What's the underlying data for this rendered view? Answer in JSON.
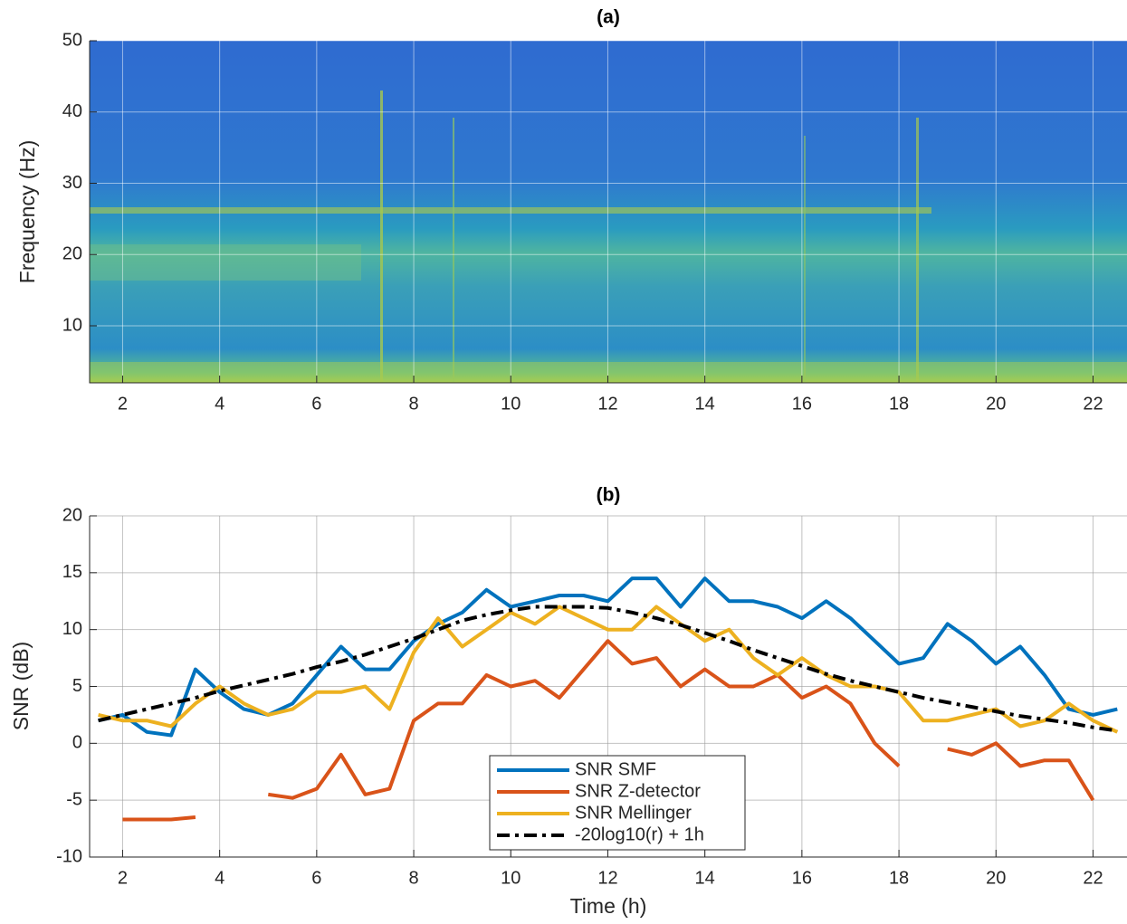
{
  "chart_data": [
    {
      "type": "spectrogram",
      "title": "(a)",
      "ylabel": "Frequency (Hz)",
      "xlim": [
        1.32,
        22.7
      ],
      "xticks": [
        2,
        4,
        6,
        8,
        10,
        12,
        14,
        16,
        18,
        20,
        22
      ],
      "ylim": [
        2,
        50
      ],
      "yticks": [
        10,
        20,
        30,
        40,
        50
      ],
      "grid": true
    },
    {
      "type": "line",
      "title": "(b)",
      "xlabel": "Time (h)",
      "ylabel": "SNR (dB)",
      "xlim": [
        1.32,
        22.7
      ],
      "xticks": [
        2,
        4,
        6,
        8,
        10,
        12,
        14,
        16,
        18,
        20,
        22
      ],
      "ylim": [
        -10,
        20
      ],
      "yticks": [
        -10,
        -5,
        0,
        5,
        10,
        15,
        20
      ],
      "grid": true,
      "legend": "lower center",
      "x": [
        1.5,
        2,
        2.5,
        3,
        3.5,
        4,
        4.5,
        5,
        5.5,
        6,
        6.5,
        7,
        7.5,
        8,
        8.5,
        9,
        9.5,
        10,
        10.5,
        11,
        11.5,
        12,
        12.5,
        13,
        13.5,
        14,
        14.5,
        15,
        15.5,
        16,
        16.5,
        17,
        17.5,
        18,
        18.5,
        19,
        19.5,
        20,
        20.5,
        21,
        21.5,
        22,
        22.5
      ],
      "series": [
        {
          "name": "SNR SMF",
          "color": "#0072bd",
          "values": [
            2,
            2.5,
            1,
            0.7,
            6.5,
            4.5,
            3,
            2.5,
            3.5,
            6,
            8.5,
            6.5,
            6.5,
            9,
            10.5,
            11.5,
            13.5,
            12,
            12.5,
            13,
            13,
            12.5,
            14.5,
            14.5,
            12,
            14.5,
            12.5,
            12.5,
            12,
            11,
            12.5,
            11,
            9,
            7,
            7.5,
            10.5,
            9,
            7,
            8.5,
            6,
            3,
            2.5,
            3
          ]
        },
        {
          "name": "SNR Z-detector",
          "color": "#d95319",
          "values": [
            null,
            -6.7,
            -6.7,
            -6.7,
            -6.5,
            null,
            null,
            -4.5,
            -4.8,
            -4,
            -1,
            -4.5,
            -4,
            2,
            3.5,
            3.5,
            6,
            5,
            5.5,
            4,
            6.5,
            9,
            7,
            7.5,
            5,
            6.5,
            5,
            5,
            6,
            4,
            5,
            3.5,
            0,
            -2,
            null,
            -0.5,
            -1,
            0,
            -2,
            -1.5,
            -1.5,
            -5,
            null
          ]
        },
        {
          "name": "SNR Mellinger",
          "color": "#edb120",
          "values": [
            2.5,
            2,
            2,
            1.5,
            3.5,
            5,
            3.5,
            2.5,
            3,
            4.5,
            4.5,
            5,
            3,
            8,
            11,
            8.5,
            10,
            11.5,
            10.5,
            12,
            11,
            10,
            10,
            12,
            10.5,
            9,
            10,
            7.5,
            6,
            7.5,
            6,
            5,
            5,
            4.5,
            2,
            2,
            2.5,
            3,
            1.5,
            2,
            3.5,
            2,
            1
          ]
        },
        {
          "name": "-20log10(r) + 1h",
          "color": "#000000",
          "dashed": true,
          "values": [
            2,
            2.5,
            3,
            3.5,
            4,
            4.6,
            5.1,
            5.6,
            6.1,
            6.7,
            7.2,
            7.8,
            8.5,
            9.2,
            10,
            10.8,
            11.3,
            11.7,
            12,
            12,
            12,
            11.9,
            11.5,
            11,
            10.4,
            9.7,
            9,
            8.2,
            7.5,
            6.8,
            6.1,
            5.5,
            5,
            4.5,
            4,
            3.6,
            3.2,
            2.8,
            2.4,
            2.1,
            1.8,
            1.4,
            1.1
          ]
        }
      ]
    }
  ]
}
